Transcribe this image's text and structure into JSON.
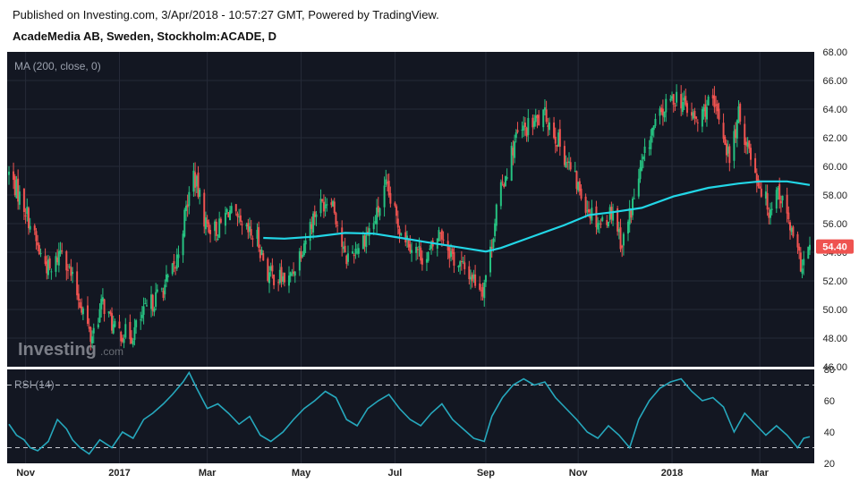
{
  "header": {
    "published": "Published on Investing.com, 3/Apr/2018 - 10:57:27 GMT, Powered by TradingView.",
    "symbol": "AcadeMedia AB, Sweden, Stockholm:ACADE, D"
  },
  "watermark": {
    "brand": "Investing",
    "suffix": ".com"
  },
  "colors": {
    "background": "#131722",
    "grid": "#262b38",
    "up": "#26c281",
    "down": "#ef5350",
    "ma": "#22d6e6",
    "rsi": "#26a8bd",
    "price_tag": "#ef5350"
  },
  "chart_data": [
    {
      "type": "candlestick",
      "interval": "D",
      "indicator_label": "MA (200, close, 0)",
      "ylim": [
        46,
        68
      ],
      "y_ticks": [
        "46.00",
        "48.00",
        "50.00",
        "52.00",
        "54.00",
        "56.00",
        "58.00",
        "60.00",
        "62.00",
        "64.00",
        "66.00",
        "68.00"
      ],
      "last_price": "54.40",
      "x_range": [
        "2016-10-21",
        "2018-04-03"
      ],
      "x_ticks": [
        {
          "label": "Nov",
          "date": "2016-11-01"
        },
        {
          "label": "2017",
          "date": "2017-01-02"
        },
        {
          "label": "Mar",
          "date": "2017-03-01"
        },
        {
          "label": "May",
          "date": "2017-05-02"
        },
        {
          "label": "Jul",
          "date": "2017-07-03"
        },
        {
          "label": "Sep",
          "date": "2017-09-01"
        },
        {
          "label": "Nov",
          "date": "2017-11-01"
        },
        {
          "label": "2018",
          "date": "2018-01-02"
        },
        {
          "label": "Mar",
          "date": "2018-03-01"
        }
      ],
      "close_path": [
        [
          "2016-10-21",
          59.5
        ],
        [
          "2016-11-01",
          57.0
        ],
        [
          "2016-11-10",
          54.0
        ],
        [
          "2016-11-18",
          52.5
        ],
        [
          "2016-11-25",
          54.5
        ],
        [
          "2016-12-02",
          52.0
        ],
        [
          "2016-12-09",
          50.0
        ],
        [
          "2016-12-14",
          48.0
        ],
        [
          "2016-12-22",
          50.5
        ],
        [
          "2016-12-30",
          48.5
        ],
        [
          "2017-01-10",
          48.2
        ],
        [
          "2017-01-20",
          50.0
        ],
        [
          "2017-01-31",
          51.5
        ],
        [
          "2017-02-08",
          53.0
        ],
        [
          "2017-02-15",
          57.0
        ],
        [
          "2017-02-20",
          59.5
        ],
        [
          "2017-02-28",
          56.0
        ],
        [
          "2017-03-08",
          55.5
        ],
        [
          "2017-03-15",
          57.0
        ],
        [
          "2017-03-24",
          55.5
        ],
        [
          "2017-04-03",
          55.0
        ],
        [
          "2017-04-10",
          52.5
        ],
        [
          "2017-04-24",
          52.0
        ],
        [
          "2017-05-03",
          54.5
        ],
        [
          "2017-05-12",
          57.0
        ],
        [
          "2017-05-22",
          58.0
        ],
        [
          "2017-05-31",
          53.5
        ],
        [
          "2017-06-09",
          54.5
        ],
        [
          "2017-06-19",
          56.0
        ],
        [
          "2017-06-27",
          58.5
        ],
        [
          "2017-07-05",
          56.0
        ],
        [
          "2017-07-14",
          54.5
        ],
        [
          "2017-07-24",
          53.5
        ],
        [
          "2017-08-02",
          55.5
        ],
        [
          "2017-08-11",
          53.5
        ],
        [
          "2017-08-21",
          52.5
        ],
        [
          "2017-08-30",
          51.5
        ],
        [
          "2017-09-04",
          54.0
        ],
        [
          "2017-09-08",
          57.0
        ],
        [
          "2017-09-14",
          59.5
        ],
        [
          "2017-09-21",
          62.0
        ],
        [
          "2017-10-02",
          63.0
        ],
        [
          "2017-10-11",
          63.5
        ],
        [
          "2017-10-20",
          61.5
        ],
        [
          "2017-10-30",
          59.0
        ],
        [
          "2017-11-08",
          57.0
        ],
        [
          "2017-11-16",
          56.0
        ],
        [
          "2017-11-24",
          57.0
        ],
        [
          "2017-11-30",
          54.5
        ],
        [
          "2017-12-06",
          57.0
        ],
        [
          "2017-12-13",
          60.0
        ],
        [
          "2017-12-20",
          62.5
        ],
        [
          "2017-12-28",
          64.0
        ],
        [
          "2018-01-05",
          65.0
        ],
        [
          "2018-01-12",
          64.0
        ],
        [
          "2018-01-19",
          63.0
        ],
        [
          "2018-01-26",
          64.5
        ],
        [
          "2018-02-02",
          63.5
        ],
        [
          "2018-02-09",
          60.5
        ],
        [
          "2018-02-15",
          63.5
        ],
        [
          "2018-02-21",
          61.5
        ],
        [
          "2018-02-28",
          59.0
        ],
        [
          "2018-03-07",
          57.0
        ],
        [
          "2018-03-13",
          58.5
        ],
        [
          "2018-03-19",
          56.5
        ],
        [
          "2018-03-25",
          54.0
        ],
        [
          "2018-03-29",
          53.0
        ],
        [
          "2018-04-03",
          54.4
        ]
      ],
      "ma_path": [
        [
          "2017-04-07",
          55.0
        ],
        [
          "2017-04-21",
          54.95
        ],
        [
          "2017-05-12",
          55.1
        ],
        [
          "2017-05-31",
          55.35
        ],
        [
          "2017-06-19",
          55.3
        ],
        [
          "2017-07-07",
          55.0
        ],
        [
          "2017-07-24",
          54.7
        ],
        [
          "2017-08-11",
          54.4
        ],
        [
          "2017-09-01",
          54.05
        ],
        [
          "2017-09-11",
          54.3
        ],
        [
          "2017-10-02",
          55.1
        ],
        [
          "2017-10-23",
          55.9
        ],
        [
          "2017-11-08",
          56.6
        ],
        [
          "2017-11-24",
          56.8
        ],
        [
          "2017-12-13",
          57.1
        ],
        [
          "2018-01-03",
          57.9
        ],
        [
          "2018-01-26",
          58.5
        ],
        [
          "2018-02-15",
          58.8
        ],
        [
          "2018-03-01",
          58.95
        ],
        [
          "2018-03-19",
          58.95
        ],
        [
          "2018-04-03",
          58.7
        ]
      ]
    },
    {
      "type": "line",
      "indicator_label": "RSI (14)",
      "ylim": [
        20,
        80
      ],
      "y_ticks": [
        "20",
        "40",
        "60",
        "80"
      ],
      "bands": [
        70,
        30
      ],
      "series": [
        {
          "values": [
            [
              "2016-10-21",
              45
            ],
            [
              "2016-10-26",
              38
            ],
            [
              "2016-10-31",
              35
            ],
            [
              "2016-11-04",
              30
            ],
            [
              "2016-11-09",
              28
            ],
            [
              "2016-11-16",
              34
            ],
            [
              "2016-11-22",
              48
            ],
            [
              "2016-11-28",
              42
            ],
            [
              "2016-12-02",
              35
            ],
            [
              "2016-12-07",
              30
            ],
            [
              "2016-12-13",
              26
            ],
            [
              "2016-12-20",
              35
            ],
            [
              "2016-12-28",
              30
            ],
            [
              "2017-01-04",
              40
            ],
            [
              "2017-01-11",
              36
            ],
            [
              "2017-01-18",
              48
            ],
            [
              "2017-01-24",
              52
            ],
            [
              "2017-01-31",
              58
            ],
            [
              "2017-02-06",
              64
            ],
            [
              "2017-02-13",
              72
            ],
            [
              "2017-02-17",
              78
            ],
            [
              "2017-02-22",
              68
            ],
            [
              "2017-03-01",
              55
            ],
            [
              "2017-03-08",
              58
            ],
            [
              "2017-03-15",
              52
            ],
            [
              "2017-03-22",
              45
            ],
            [
              "2017-03-29",
              50
            ],
            [
              "2017-04-05",
              38
            ],
            [
              "2017-04-12",
              34
            ],
            [
              "2017-04-20",
              40
            ],
            [
              "2017-04-27",
              48
            ],
            [
              "2017-05-04",
              55
            ],
            [
              "2017-05-11",
              60
            ],
            [
              "2017-05-18",
              66
            ],
            [
              "2017-05-25",
              62
            ],
            [
              "2017-06-01",
              48
            ],
            [
              "2017-06-08",
              44
            ],
            [
              "2017-06-15",
              55
            ],
            [
              "2017-06-22",
              60
            ],
            [
              "2017-06-29",
              64
            ],
            [
              "2017-07-06",
              55
            ],
            [
              "2017-07-13",
              48
            ],
            [
              "2017-07-20",
              44
            ],
            [
              "2017-07-27",
              52
            ],
            [
              "2017-08-03",
              58
            ],
            [
              "2017-08-10",
              48
            ],
            [
              "2017-08-17",
              42
            ],
            [
              "2017-08-24",
              36
            ],
            [
              "2017-08-31",
              34
            ],
            [
              "2017-09-05",
              50
            ],
            [
              "2017-09-12",
              62
            ],
            [
              "2017-09-19",
              70
            ],
            [
              "2017-09-26",
              74
            ],
            [
              "2017-10-03",
              70
            ],
            [
              "2017-10-10",
              72
            ],
            [
              "2017-10-17",
              62
            ],
            [
              "2017-10-24",
              55
            ],
            [
              "2017-10-31",
              48
            ],
            [
              "2017-11-07",
              40
            ],
            [
              "2017-11-14",
              36
            ],
            [
              "2017-11-21",
              44
            ],
            [
              "2017-11-28",
              38
            ],
            [
              "2017-12-05",
              30
            ],
            [
              "2017-12-11",
              48
            ],
            [
              "2017-12-18",
              60
            ],
            [
              "2017-12-25",
              68
            ],
            [
              "2018-01-01",
              72
            ],
            [
              "2018-01-08",
              74
            ],
            [
              "2018-01-15",
              66
            ],
            [
              "2018-01-22",
              60
            ],
            [
              "2018-01-29",
              62
            ],
            [
              "2018-02-05",
              56
            ],
            [
              "2018-02-12",
              40
            ],
            [
              "2018-02-19",
              52
            ],
            [
              "2018-02-26",
              45
            ],
            [
              "2018-03-05",
              38
            ],
            [
              "2018-03-12",
              44
            ],
            [
              "2018-03-19",
              38
            ],
            [
              "2018-03-26",
              30
            ],
            [
              "2018-03-30",
              36
            ],
            [
              "2018-04-03",
              37
            ]
          ]
        }
      ]
    }
  ]
}
